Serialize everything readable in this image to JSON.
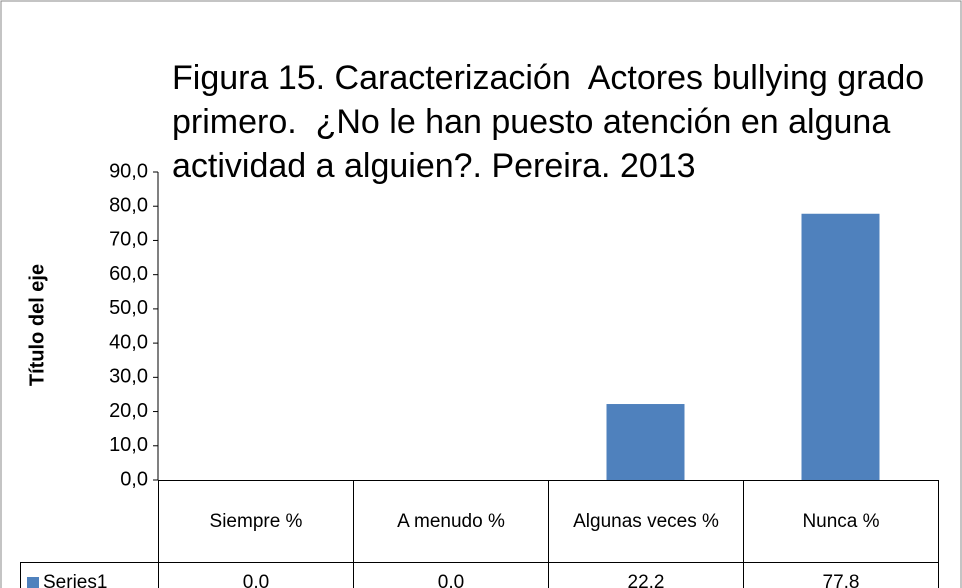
{
  "chart_data": {
    "type": "bar",
    "title": "Figura 15. Caracterización  Actores bullying grado  primero.  ¿No le han puesto atención en alguna actividad a alguien?. Pereira. 2013",
    "y_axis_label": "Título del eje",
    "categories": [
      "Siempre %",
      "A menudo %",
      "Algunas veces %",
      "Nunca %"
    ],
    "series": [
      {
        "name": "Series1",
        "color": "#4f81bd",
        "values": [
          0,
          0,
          22.2,
          77.8
        ],
        "value_labels": [
          "0,0",
          "0,0",
          "22,2",
          "77,8"
        ]
      }
    ],
    "ylim": [
      0,
      90
    ],
    "yticks": [
      {
        "value": 0,
        "label": "0,0"
      },
      {
        "value": 10,
        "label": "10,0"
      },
      {
        "value": 20,
        "label": "20,0"
      },
      {
        "value": 30,
        "label": "30,0"
      },
      {
        "value": 40,
        "label": "40,0"
      },
      {
        "value": 50,
        "label": "50,0"
      },
      {
        "value": 60,
        "label": "60,0"
      },
      {
        "value": 70,
        "label": "70,0"
      },
      {
        "value": 80,
        "label": "80,0"
      },
      {
        "value": 90,
        "label": "90,0"
      }
    ],
    "grid": false
  }
}
